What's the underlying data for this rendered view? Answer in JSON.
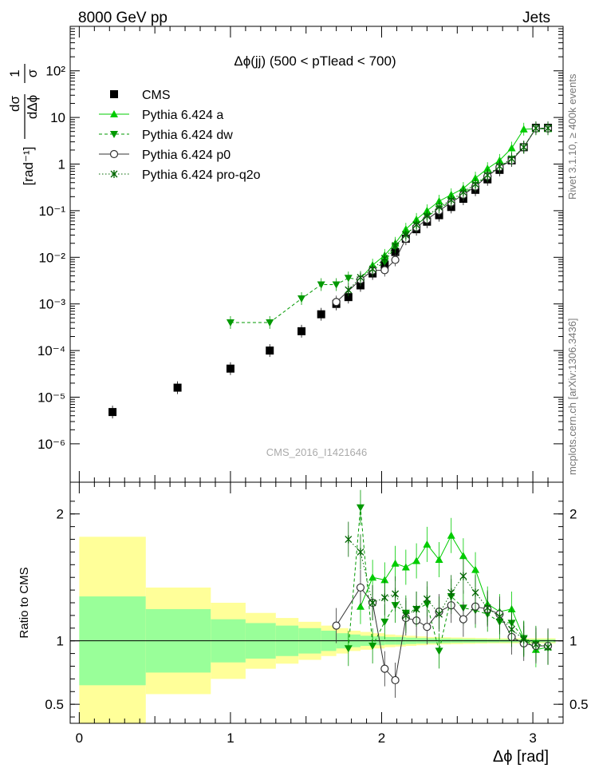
{
  "header": {
    "left": "8000 GeV pp",
    "right": "Jets"
  },
  "side_labels": {
    "top": "Rivet 3.1.10, ≥ 400k events",
    "bottom": "mcplots.cern.ch [arXiv:1306.3436]"
  },
  "watermark": "CMS_2016_I1421646",
  "colors": {
    "cms": "#000000",
    "pythia_a": "#00cc00",
    "pythia_dw": "#009900",
    "pythia_p0": "#333333",
    "pythia_proq2o": "#006600",
    "band_inner": "#99ff99",
    "band_outer": "#ffff99"
  },
  "chart_data": [
    {
      "type": "scatter",
      "title": "Δϕ(jj) (500 < pTlead <  700)",
      "xlabel": "Δϕ [rad]",
      "ylabel": "1/σ dσ/dΔϕ [rad⁻¹]",
      "yscale": "log",
      "xlim": [
        -0.06,
        3.2
      ],
      "ylim": [
        1.5e-07,
        900
      ],
      "legend_position": "top-left",
      "series": [
        {
          "name": "CMS",
          "marker": "square",
          "x": [
            0.22,
            0.65,
            1.0,
            1.26,
            1.47,
            1.6,
            1.7,
            1.78,
            1.86,
            1.94,
            2.02,
            2.09,
            2.16,
            2.23,
            2.3,
            2.38,
            2.46,
            2.54,
            2.62,
            2.7,
            2.78,
            2.86,
            2.94,
            3.02,
            3.1
          ],
          "y": [
            4.8e-06,
            1.6e-05,
            4.1e-05,
            0.0001,
            0.00026,
            0.0006,
            0.001,
            0.0014,
            0.0025,
            0.0045,
            0.007,
            0.013,
            0.025,
            0.04,
            0.058,
            0.08,
            0.12,
            0.18,
            0.28,
            0.47,
            0.75,
            1.2,
            2.3,
            6.0,
            6.0
          ]
        },
        {
          "name": "Pythia 6.424 a",
          "marker": "triangle-up",
          "line": "solid",
          "x": [
            1.86,
            1.94,
            2.02,
            2.09,
            2.16,
            2.23,
            2.3,
            2.38,
            2.46,
            2.54,
            2.62,
            2.7,
            2.78,
            2.86,
            2.94,
            3.02,
            3.1
          ],
          "y": [
            0.0035,
            0.0068,
            0.011,
            0.02,
            0.04,
            0.065,
            0.1,
            0.16,
            0.22,
            0.3,
            0.5,
            0.8,
            1.2,
            2.2,
            5.6,
            5.7,
            5.7
          ]
        },
        {
          "name": "Pythia 6.424 dw",
          "marker": "triangle-down",
          "line": "dashed",
          "x": [
            1.0,
            1.26,
            1.47,
            1.6,
            1.7,
            1.78,
            1.86,
            1.94,
            2.02,
            2.09,
            2.16,
            2.23,
            2.3,
            2.38,
            2.46,
            2.54,
            2.62,
            2.7,
            2.78,
            2.86,
            2.94,
            3.02,
            3.1
          ],
          "y": [
            0.0004,
            0.0004,
            0.0013,
            0.0026,
            0.0026,
            0.0036,
            0.0033,
            0.0052,
            0.008,
            0.017,
            0.031,
            0.05,
            0.075,
            0.11,
            0.16,
            0.23,
            0.35,
            0.57,
            0.86,
            1.28,
            2.3,
            5.9,
            5.9
          ]
        },
        {
          "name": "Pythia 6.424 p0",
          "marker": "circle-open",
          "line": "solid",
          "x": [
            1.7,
            1.86,
            1.94,
            2.02,
            2.09,
            2.16,
            2.23,
            2.3,
            2.38,
            2.46,
            2.54,
            2.62,
            2.7,
            2.78,
            2.86,
            2.94,
            3.02,
            3.1
          ],
          "y": [
            0.0011,
            0.0033,
            0.0052,
            0.0053,
            0.0088,
            0.025,
            0.044,
            0.065,
            0.1,
            0.15,
            0.22,
            0.33,
            0.55,
            0.86,
            1.2,
            2.3,
            5.8,
            5.8
          ]
        },
        {
          "name": "Pythia 6.424 pro-q2o",
          "marker": "star",
          "line": "dotted",
          "x": [
            1.78,
            1.86,
            1.94,
            2.02,
            2.09,
            2.16,
            2.23,
            2.3,
            2.38,
            2.46,
            2.54,
            2.62,
            2.7,
            2.78,
            2.86,
            2.94,
            3.02,
            3.1
          ],
          "y": [
            0.002,
            0.0037,
            0.0056,
            0.0095,
            0.018,
            0.03,
            0.05,
            0.077,
            0.12,
            0.17,
            0.25,
            0.37,
            0.58,
            0.9,
            1.3,
            2.3,
            5.9,
            5.9
          ]
        }
      ]
    },
    {
      "type": "scatter",
      "ylabel": "Ratio to CMS",
      "xlabel": "Δϕ [rad]",
      "xlim": [
        -0.06,
        3.2
      ],
      "ylim": [
        0.35,
        2.25
      ],
      "bands": {
        "edges": [
          0.0,
          0.44,
          0.87,
          1.1,
          1.3,
          1.45,
          1.6,
          1.7,
          1.78,
          1.86,
          1.94,
          2.02,
          2.09,
          2.16,
          2.23,
          2.3,
          2.38,
          2.46,
          2.54,
          2.62,
          2.7,
          2.78,
          2.86,
          2.94,
          3.02,
          3.15
        ],
        "inner_half_width": [
          0.35,
          0.25,
          0.17,
          0.14,
          0.12,
          0.1,
          0.08,
          0.06,
          0.05,
          0.04,
          0.035,
          0.03,
          0.03,
          0.025,
          0.022,
          0.02,
          0.018,
          0.016,
          0.015,
          0.014,
          0.013,
          0.012,
          0.012,
          0.012,
          0.012
        ],
        "outer_half_width": [
          0.82,
          0.42,
          0.3,
          0.22,
          0.18,
          0.15,
          0.12,
          0.1,
          0.08,
          0.07,
          0.06,
          0.05,
          0.045,
          0.04,
          0.035,
          0.03,
          0.028,
          0.026,
          0.024,
          0.022,
          0.02,
          0.02,
          0.02,
          0.02,
          0.02
        ]
      },
      "series": [
        {
          "name": "Pythia 6.424 a",
          "x": [
            1.86,
            1.94,
            2.02,
            2.09,
            2.16,
            2.23,
            2.3,
            2.38,
            2.46,
            2.54,
            2.62,
            2.7,
            2.78,
            2.86,
            2.94,
            3.02,
            3.1
          ],
          "y": [
            1.27,
            1.5,
            1.48,
            1.61,
            1.58,
            1.63,
            1.76,
            1.64,
            1.83,
            1.67,
            1.56,
            1.29,
            1.23,
            1.25,
            1.02,
            0.93,
            0.95
          ]
        },
        {
          "name": "Pythia 6.424 dw",
          "x": [
            1.78,
            1.86,
            1.94,
            2.02,
            2.09,
            2.16,
            2.23,
            2.3,
            2.38,
            2.46,
            2.54,
            2.62,
            2.7,
            2.78,
            2.86,
            2.94,
            3.02,
            3.1
          ],
          "y": [
            0.94,
            2.05,
            0.96,
            1.15,
            1.28,
            1.22,
            1.25,
            1.29,
            0.92,
            1.35,
            1.26,
            1.24,
            1.21,
            1.15,
            1.14,
            1.02,
            0.98,
            0.95
          ]
        },
        {
          "name": "Pythia 6.424 p0",
          "x": [
            1.7,
            1.86,
            1.94,
            2.02,
            2.09,
            2.16,
            2.23,
            2.3,
            2.38,
            2.46,
            2.54,
            2.62,
            2.7,
            2.78,
            2.86,
            2.94,
            3.02,
            3.1
          ],
          "y": [
            1.12,
            1.42,
            1.3,
            0.78,
            0.69,
            1.18,
            1.16,
            1.11,
            1.23,
            1.28,
            1.17,
            1.27,
            1.25,
            1.21,
            1.03,
            0.98,
            0.96,
            0.96
          ]
        },
        {
          "name": "Pythia 6.424 pro-q2o",
          "x": [
            1.78,
            1.86,
            1.94,
            2.02,
            2.09,
            2.16,
            2.23,
            2.3,
            2.38,
            2.46,
            2.54,
            2.62,
            2.7,
            2.78,
            2.86,
            2.94,
            3.02,
            3.1
          ],
          "y": [
            1.8,
            1.7,
            1.3,
            1.34,
            1.37,
            1.2,
            1.25,
            1.33,
            1.21,
            1.38,
            1.51,
            1.38,
            1.26,
            1.19,
            1.09,
            1.01,
            0.97,
            0.95
          ]
        }
      ]
    }
  ],
  "axis": {
    "top_yticks": [
      "10⁻⁶",
      "10⁻⁵",
      "10⁻⁴",
      "10⁻³",
      "10⁻²",
      "10⁻¹",
      "1",
      "10",
      "10²"
    ],
    "ratio_yticks": [
      "0.5",
      "1",
      "2"
    ],
    "xticks": [
      "0",
      "1",
      "2",
      "3"
    ]
  }
}
